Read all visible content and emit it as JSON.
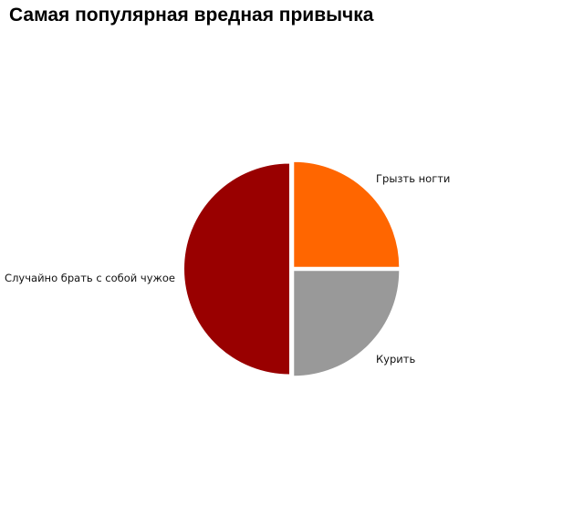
{
  "chart_data": {
    "type": "pie",
    "title": "Самая популярная вредная привычка",
    "start_angle_deg": 0,
    "direction": "clockwise",
    "exploded": true,
    "slices": [
      {
        "label": "Грызть ногти",
        "value": 25,
        "color": "#ff6600"
      },
      {
        "label": "Курить",
        "value": 25,
        "color": "#999999"
      },
      {
        "label": "Случайно брать с собой чужое",
        "value": 50,
        "color": "#990000"
      }
    ],
    "legend": "none",
    "labels_placement": "outside"
  }
}
